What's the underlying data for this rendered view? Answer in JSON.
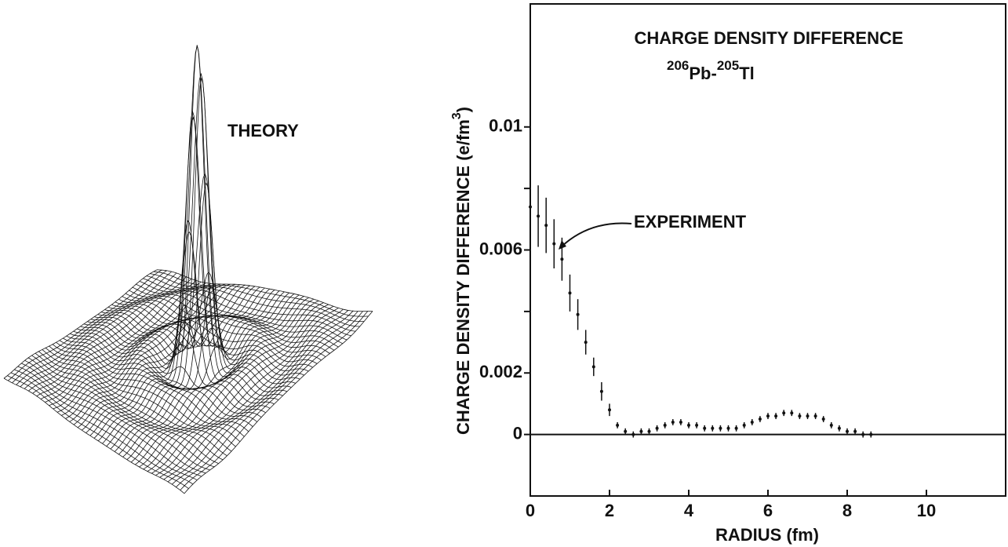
{
  "chart_data": {
    "type": "errorbar",
    "title": "CHARGE DENSITY DIFFERENCE",
    "subtitle": [
      "206",
      "Pb-",
      "205",
      "Tl"
    ],
    "ylabel": [
      "CHARGE DENSITY DIFFERENCE (e/fm",
      "3",
      ")"
    ],
    "xlabel": "RADIUS (fm)",
    "annotations": {
      "theory": "THEORY",
      "experiment": "EXPERIMENT"
    },
    "x": [
      0,
      0.2,
      0.4,
      0.6,
      0.8,
      1.0,
      1.2,
      1.4,
      1.6,
      1.8,
      2.0,
      2.2,
      2.4,
      2.6,
      2.8,
      3.0,
      3.2,
      3.4,
      3.6,
      3.8,
      4.0,
      4.2,
      4.4,
      4.6,
      4.8,
      5.0,
      5.2,
      5.4,
      5.6,
      5.8,
      6.0,
      6.2,
      6.4,
      6.6,
      6.8,
      7.0,
      7.2,
      7.4,
      7.6,
      7.8,
      8.0,
      8.2,
      8.4,
      8.6
    ],
    "values": [
      0.0074,
      0.0071,
      0.0068,
      0.0062,
      0.0057,
      0.0046,
      0.0039,
      0.003,
      0.0022,
      0.0014,
      0.0008,
      0.0003,
      0.0001,
      0,
      0.0001,
      0.0001,
      0.0002,
      0.0003,
      0.0004,
      0.0004,
      0.0003,
      0.0003,
      0.0002,
      0.0002,
      0.0002,
      0.0002,
      0.0002,
      0.0003,
      0.0004,
      0.0005,
      0.0006,
      0.0006,
      0.0007,
      0.0007,
      0.0006,
      0.0006,
      0.0006,
      0.0005,
      0.0003,
      0.0002,
      0.0001,
      0.0001,
      0,
      0
    ],
    "errors": [
      0.001,
      0.001,
      0.0009,
      0.0008,
      0.0007,
      0.0006,
      0.0005,
      0.0004,
      0.0003,
      0.0003,
      0.0002,
      0.0001,
      0.0001,
      0.0001,
      0.0001,
      0.0001,
      0.0001,
      0.0001,
      0.0001,
      0.0001,
      0.0001,
      0.0001,
      0.0001,
      0.0001,
      0.0001,
      0.0001,
      0.0001,
      0.0001,
      0.0001,
      0.0001,
      0.0001,
      0.0001,
      0.0001,
      0.0001,
      0.0001,
      0.0001,
      0.0001,
      0.0001,
      0.0001,
      0.0001,
      0.0001,
      0.0001,
      0.0001,
      0.0001
    ],
    "color": "#111111",
    "xlim": [
      0,
      12
    ],
    "ylim": [
      -0.002,
      0.014
    ],
    "xticks": [
      0,
      2,
      4,
      6,
      8,
      10
    ],
    "yticks": [
      0,
      0.002,
      0.006,
      0.01
    ],
    "yminor_ticks": [
      0.004,
      0.008
    ]
  }
}
